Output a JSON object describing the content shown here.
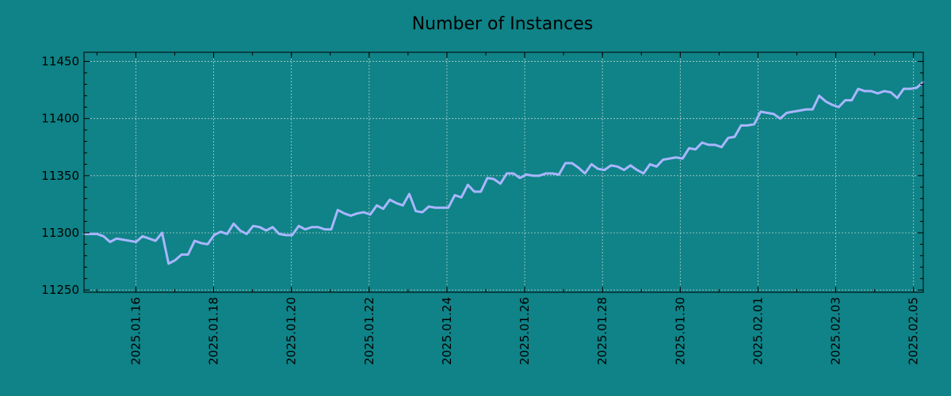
{
  "chart_data": {
    "type": "line",
    "title": "Number of Instances",
    "xlabel": "",
    "ylabel": "",
    "x_start": "2025-01-14T16:00",
    "x_end": "2025-02-05T06:00",
    "xlim": [
      "2025-01-14T16:00",
      "2025-02-05T06:00"
    ],
    "ylim": [
      11248,
      11458
    ],
    "grid": true,
    "legend": "none",
    "colors": {
      "background": "#0f8387",
      "line": "#a9b6ff"
    },
    "x_ticks": [
      "2025.01.16",
      "2025.01.18",
      "2025.01.20",
      "2025.01.22",
      "2025.01.24",
      "2025.01.26",
      "2025.01.28",
      "2025.01.30",
      "2025.02.01",
      "2025.02.03",
      "2025.02.05"
    ],
    "y_ticks": [
      11250,
      11300,
      11350,
      11400,
      11450
    ],
    "series": [
      {
        "values": [
          11299,
          11299,
          11299,
          11297,
          11292,
          11295,
          11294,
          11293,
          11292,
          11297,
          11295,
          11293,
          11300,
          11273,
          11276,
          11281,
          11281,
          11293,
          11291,
          11290,
          11298,
          11301,
          11299,
          11308,
          11302,
          11299,
          11306,
          11305,
          11302,
          11305,
          11299,
          11298,
          11298,
          11306,
          11303,
          11305,
          11305,
          11303,
          11303,
          11320,
          11317,
          11315,
          11317,
          11318,
          11316,
          11324,
          11321,
          11329,
          11326,
          11324,
          11334,
          11319,
          11318,
          11323,
          11322,
          11322,
          11322,
          11333,
          11331,
          11342,
          11336,
          11336,
          11348,
          11347,
          11343,
          11352,
          11352,
          11348,
          11351,
          11350,
          11350,
          11352,
          11352,
          11351,
          11361,
          11361,
          11357,
          11352,
          11360,
          11356,
          11355,
          11359,
          11358,
          11355,
          11359,
          11355,
          11352,
          11360,
          11358,
          11364,
          11365,
          11366,
          11365,
          11374,
          11373,
          11379,
          11377,
          11377,
          11375,
          11383,
          11384,
          11394,
          11394,
          11395,
          11406,
          11405,
          11404,
          11400,
          11405,
          11406,
          11407,
          11408,
          11408,
          11420,
          11415,
          11412,
          11410,
          11416,
          11416,
          11426,
          11424,
          11424,
          11422,
          11424,
          11423,
          11418,
          11426,
          11426,
          11427,
          11432
        ]
      }
    ]
  }
}
